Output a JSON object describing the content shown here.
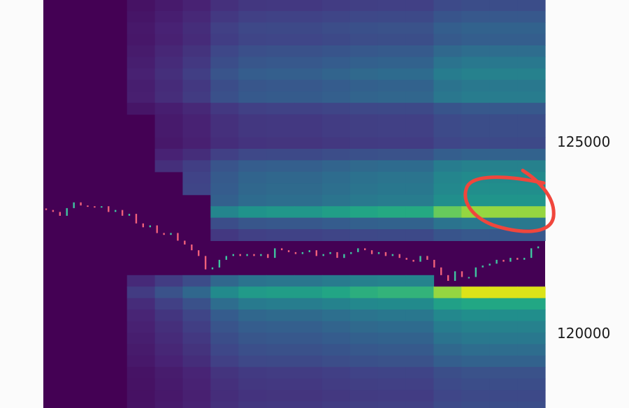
{
  "chart_data": {
    "type": "heatmap",
    "title": "",
    "xlabel": "",
    "ylabel": "",
    "ylim": [
      118000,
      128700
    ],
    "y_ticks": [
      {
        "value": 125000,
        "label": "125000"
      },
      {
        "value": 120000,
        "label": "120000"
      }
    ],
    "colormap": "viridis",
    "heatmap": {
      "price_bin": 300,
      "top_price": 128700,
      "row_intensity": [
        0.3,
        0.35,
        0.4,
        0.38,
        0.45,
        0.5,
        0.55,
        0.5,
        0.52,
        0.35,
        0.3,
        0.3,
        0.28,
        0.4,
        0.55,
        0.6,
        0.62,
        0.65,
        0.95,
        0.5,
        0.35,
        0.3,
        0.3,
        0.3,
        0.7,
        1.0,
        0.75,
        0.62,
        0.55,
        0.5,
        0.45,
        0.4,
        0.32,
        0.3,
        0.28,
        0.3
      ],
      "row_start_column": [
        3,
        3,
        3,
        3,
        3,
        3,
        3,
        3,
        3,
        3,
        4,
        4,
        4,
        4,
        4,
        5,
        5,
        6,
        6,
        6,
        6,
        6,
        6,
        6,
        3,
        3,
        3,
        3,
        3,
        3,
        3,
        3,
        3,
        3,
        3,
        3
      ],
      "column_factor": [
        0.0,
        0.02,
        0.12,
        0.22,
        0.32,
        0.42,
        0.6,
        0.68,
        0.7,
        0.7,
        0.74,
        0.78,
        0.8,
        0.8,
        0.95,
        1.0,
        1.0,
        1.0
      ],
      "cleared_ranges": [
        null,
        null,
        null,
        null,
        [
          122000,
          123600
        ],
        [
          121800,
          123600
        ],
        [
          121400,
          122500
        ],
        [
          121400,
          122500
        ],
        [
          121400,
          122500
        ],
        [
          121400,
          122500
        ],
        [
          121400,
          122500
        ],
        [
          121400,
          122500
        ],
        [
          121400,
          122500
        ],
        [
          121400,
          122500
        ],
        [
          121200,
          122500
        ],
        [
          121200,
          122500
        ],
        [
          121300,
          122500
        ],
        [
          121300,
          122400
        ]
      ]
    },
    "candles": {
      "closes": [
        123200,
        123150,
        123050,
        123250,
        123400,
        123320,
        123300,
        123280,
        123300,
        123150,
        123200,
        123050,
        123100,
        122850,
        122750,
        122800,
        122600,
        122550,
        122600,
        122400,
        122300,
        122150,
        122000,
        121650,
        121700,
        121900,
        122000,
        122050,
        122000,
        122050,
        122000,
        122050,
        121950,
        122200,
        122150,
        122100,
        122050,
        122100,
        122150,
        122000,
        122050,
        122100,
        121950,
        122050,
        122100,
        122200,
        122150,
        122050,
        122100,
        122000,
        122050,
        121950,
        121900,
        121850,
        122000,
        121900,
        121700,
        121500,
        121350,
        121600,
        121450,
        121450,
        121700,
        121750,
        121800,
        121900,
        121850,
        121950,
        121900,
        121950,
        122200,
        122250
      ],
      "up_color": "#3fc5a0",
      "down_color": "#f0607a"
    },
    "annotation_color": "#f0463c"
  }
}
